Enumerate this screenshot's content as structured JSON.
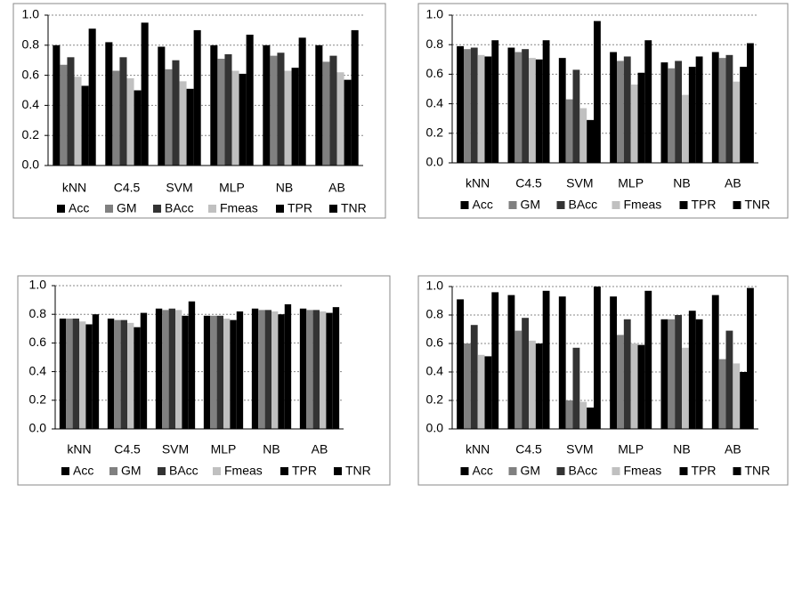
{
  "chart_data": [
    {
      "type": "bar",
      "categories": [
        "kNN",
        "C4.5",
        "SVM",
        "MLP",
        "NB",
        "AB"
      ],
      "series": [
        {
          "name": "Acc",
          "color": "#000000",
          "values": [
            0.8,
            0.82,
            0.79,
            0.8,
            0.8,
            0.8
          ]
        },
        {
          "name": "GM",
          "color": "#808080",
          "values": [
            0.67,
            0.63,
            0.64,
            0.71,
            0.73,
            0.69
          ]
        },
        {
          "name": "BAcc",
          "color": "#333333",
          "values": [
            0.72,
            0.72,
            0.7,
            0.74,
            0.75,
            0.73
          ]
        },
        {
          "name": "Fmeas",
          "color": "#c0c0c0",
          "values": [
            0.59,
            0.58,
            0.56,
            0.63,
            0.63,
            0.62
          ]
        },
        {
          "name": "TPR",
          "color": "#000000",
          "values": [
            0.53,
            0.5,
            0.51,
            0.61,
            0.65,
            0.57
          ]
        },
        {
          "name": "TNR",
          "color": "#000000",
          "values": [
            0.91,
            0.95,
            0.9,
            0.87,
            0.85,
            0.9
          ]
        }
      ],
      "ylim": [
        0,
        1
      ],
      "yticks": [
        {
          "value": 0,
          "label": "0.0"
        },
        {
          "value": 0.2,
          "label": "0.2"
        },
        {
          "value": 0.4,
          "label": "0.4"
        },
        {
          "value": 0.6,
          "label": "0.6"
        },
        {
          "value": 0.8,
          "label": "0.8"
        },
        {
          "value": 1,
          "label": "1.0"
        }
      ],
      "grid": true
    },
    {
      "type": "bar",
      "categories": [
        "kNN",
        "C4.5",
        "SVM",
        "MLP",
        "NB",
        "AB"
      ],
      "series": [
        {
          "name": "Acc",
          "color": "#000000",
          "values": [
            0.79,
            0.78,
            0.71,
            0.75,
            0.68,
            0.75
          ]
        },
        {
          "name": "GM",
          "color": "#808080",
          "values": [
            0.77,
            0.75,
            0.43,
            0.69,
            0.64,
            0.71
          ]
        },
        {
          "name": "BAcc",
          "color": "#333333",
          "values": [
            0.78,
            0.77,
            0.63,
            0.72,
            0.69,
            0.73
          ]
        },
        {
          "name": "Fmeas",
          "color": "#c0c0c0",
          "values": [
            0.73,
            0.71,
            0.37,
            0.53,
            0.46,
            0.55
          ]
        },
        {
          "name": "TPR",
          "color": "#000000",
          "values": [
            0.72,
            0.7,
            0.29,
            0.61,
            0.65,
            0.65
          ]
        },
        {
          "name": "TNR",
          "color": "#000000",
          "values": [
            0.83,
            0.83,
            0.96,
            0.83,
            0.72,
            0.81
          ]
        }
      ],
      "ylim": [
        0,
        1
      ],
      "yticks": [
        {
          "value": 0,
          "label": "0.0"
        },
        {
          "value": 0.2,
          "label": "0.2"
        },
        {
          "value": 0.4,
          "label": "0.4"
        },
        {
          "value": 0.6,
          "label": "0.6"
        },
        {
          "value": 0.8,
          "label": "0.8"
        },
        {
          "value": 1,
          "label": "1.0"
        }
      ],
      "grid": true
    },
    {
      "type": "bar",
      "categories": [
        "kNN",
        "C4.5",
        "SVM",
        "MLP",
        "NB",
        "AB"
      ],
      "series": [
        {
          "name": "Acc",
          "color": "#000000",
          "values": [
            0.77,
            0.77,
            0.84,
            0.79,
            0.84,
            0.84
          ]
        },
        {
          "name": "GM",
          "color": "#808080",
          "values": [
            0.77,
            0.76,
            0.83,
            0.79,
            0.83,
            0.83
          ]
        },
        {
          "name": "BAcc",
          "color": "#333333",
          "values": [
            0.77,
            0.76,
            0.84,
            0.79,
            0.83,
            0.83
          ]
        },
        {
          "name": "Fmeas",
          "color": "#c0c0c0",
          "values": [
            0.75,
            0.74,
            0.83,
            0.77,
            0.82,
            0.82
          ]
        },
        {
          "name": "TPR",
          "color": "#000000",
          "values": [
            0.73,
            0.71,
            0.79,
            0.76,
            0.8,
            0.81
          ]
        },
        {
          "name": "TNR",
          "color": "#000000",
          "values": [
            0.8,
            0.81,
            0.89,
            0.82,
            0.87,
            0.85
          ]
        }
      ],
      "ylim": [
        0,
        1
      ],
      "yticks": [
        {
          "value": 0,
          "label": "0.0"
        },
        {
          "value": 0.2,
          "label": "0.2"
        },
        {
          "value": 0.4,
          "label": "0.4"
        },
        {
          "value": 0.6,
          "label": "0.6"
        },
        {
          "value": 0.8,
          "label": "0.8"
        },
        {
          "value": 1,
          "label": "1.0"
        }
      ],
      "grid": true
    },
    {
      "type": "bar",
      "categories": [
        "kNN",
        "C4.5",
        "SVM",
        "MLP",
        "NB",
        "AB"
      ],
      "series": [
        {
          "name": "Acc",
          "color": "#000000",
          "values": [
            0.91,
            0.94,
            0.93,
            0.93,
            0.77,
            0.94
          ]
        },
        {
          "name": "GM",
          "color": "#808080",
          "values": [
            0.6,
            0.69,
            0.2,
            0.66,
            0.77,
            0.49
          ]
        },
        {
          "name": "BAcc",
          "color": "#333333",
          "values": [
            0.73,
            0.78,
            0.57,
            0.77,
            0.8,
            0.69
          ]
        },
        {
          "name": "Fmeas",
          "color": "#c0c0c0",
          "values": [
            0.52,
            0.62,
            0.19,
            0.6,
            0.57,
            0.46
          ]
        },
        {
          "name": "TPR",
          "color": "#000000",
          "values": [
            0.51,
            0.6,
            0.15,
            0.59,
            0.83,
            0.4
          ]
        },
        {
          "name": "TNR",
          "color": "#000000",
          "values": [
            0.96,
            0.97,
            1.0,
            0.97,
            0.77,
            0.99
          ]
        }
      ],
      "ylim": [
        0,
        1
      ],
      "yticks": [
        {
          "value": 0,
          "label": "0.0"
        },
        {
          "value": 0.2,
          "label": "0.2"
        },
        {
          "value": 0.4,
          "label": "0.4"
        },
        {
          "value": 0.6,
          "label": "0.6"
        },
        {
          "value": 0.8,
          "label": "0.8"
        },
        {
          "value": 1,
          "label": "1.0"
        }
      ],
      "grid": true
    }
  ]
}
